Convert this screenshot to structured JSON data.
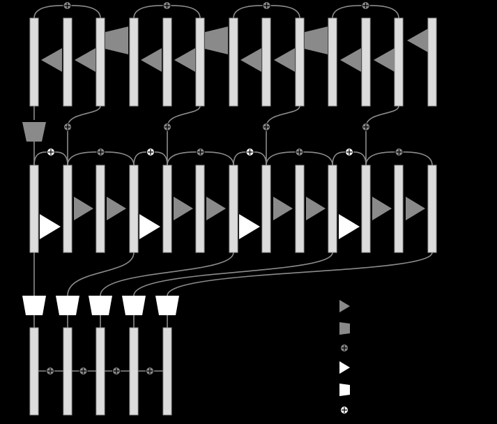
{
  "diagram": {
    "colors": {
      "background": "#000000",
      "bar_fill": "#dcdcdc",
      "bar_stroke": "#9a9a9a",
      "gray_shape": "#8a8a8a",
      "white_shape": "#ffffff",
      "connector": "#8c8c8c"
    },
    "icons": {
      "gray_triangle": "gray-triangle-icon",
      "gray_trapezoid": "gray-trapezoid-icon",
      "gray_circle_plus": "gray-add-node-icon",
      "white_triangle": "white-triangle-icon",
      "white_trapezoid": "white-trapezoid-icon",
      "white_circle_plus": "white-add-node-icon"
    },
    "legend": [
      {
        "icon": "gray-triangle-icon",
        "label": ""
      },
      {
        "icon": "gray-trapezoid-icon",
        "label": ""
      },
      {
        "icon": "gray-add-node-icon",
        "label": ""
      },
      {
        "icon": "white-triangle-icon",
        "label": ""
      },
      {
        "icon": "white-trapezoid-icon",
        "label": ""
      },
      {
        "icon": "white-add-node-icon",
        "label": ""
      }
    ]
  }
}
